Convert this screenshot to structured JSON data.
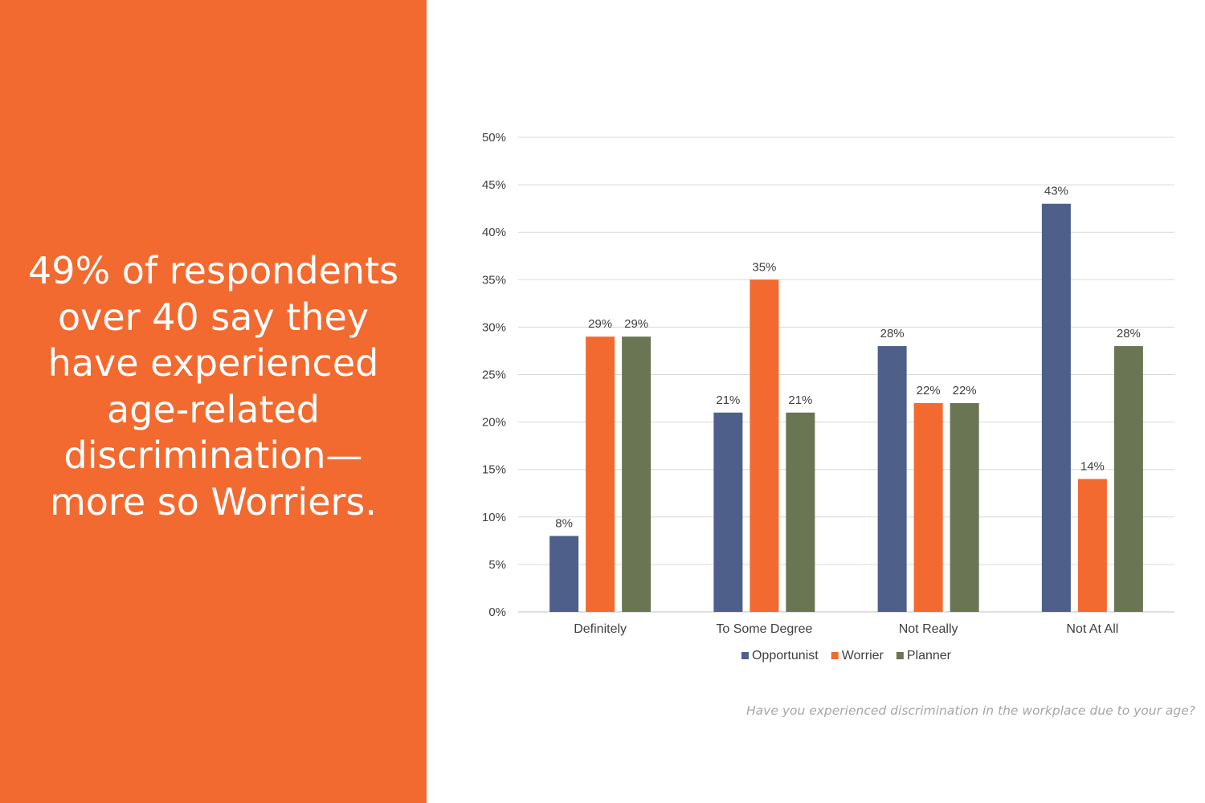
{
  "headline": "49% of respondents over 40 say they have experienced age-related discrimination—more so Worriers.",
  "footnote": "Have you experienced discrimination in the workplace due to your age?",
  "colors": {
    "panel": "#f26a30",
    "opportunist": "#4e5f8a",
    "worrier": "#f26a30",
    "planner": "#6a7553"
  },
  "chart_data": {
    "type": "bar",
    "categories": [
      "Definitely",
      "To Some Degree",
      "Not Really",
      "Not At All"
    ],
    "series": [
      {
        "name": "Opportunist",
        "values": [
          8,
          21,
          28,
          43
        ]
      },
      {
        "name": "Worrier",
        "values": [
          29,
          35,
          22,
          14
        ]
      },
      {
        "name": "Planner",
        "values": [
          29,
          21,
          22,
          28
        ]
      }
    ],
    "ylim": [
      0,
      50
    ],
    "yticks": [
      0,
      5,
      10,
      15,
      20,
      25,
      30,
      35,
      40,
      45,
      50
    ],
    "value_suffix": "%",
    "grid": true,
    "legend": "bottom",
    "data_labels": true
  }
}
